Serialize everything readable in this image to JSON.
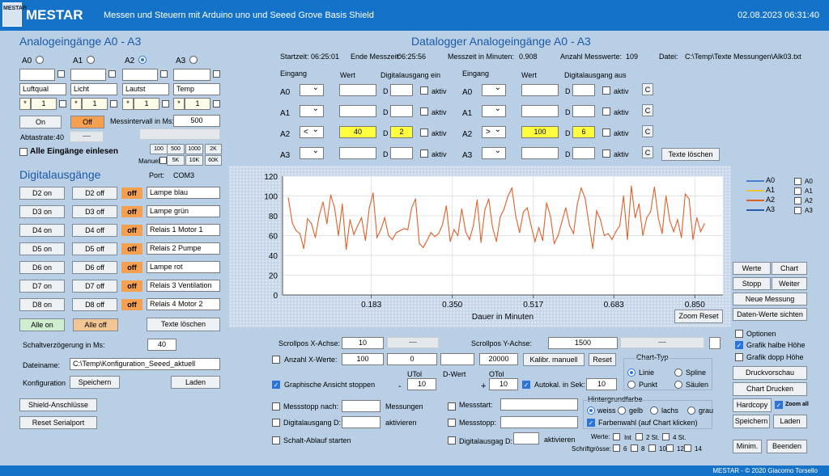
{
  "app": {
    "logo": "MESTAR",
    "title": "MESTAR",
    "subtitle": "Messen und Steuern mit Arduino uno und Seeed Grove Basis Shield",
    "datetime": "02.08.2023 06:31:40",
    "footer": "MESTAR  - © 2020 Giacomo Torsello"
  },
  "analog": {
    "heading": "Analogeingänge A0 - A3",
    "channels": [
      {
        "name": "A0",
        "label": "Luftqual",
        "factor": "1",
        "mult": "*"
      },
      {
        "name": "A1",
        "label": "Licht",
        "factor": "1",
        "mult": "*"
      },
      {
        "name": "A2",
        "label": "Lautst",
        "factor": "1",
        "mult": "*"
      },
      {
        "name": "A3",
        "label": "Temp",
        "factor": "1",
        "mult": "*"
      }
    ],
    "on": "On",
    "off": "Off",
    "interval_label": "Messintervall in Ms:",
    "interval": "500",
    "abtast_label": "Abtastrate:",
    "abtast": "40",
    "slider": "—",
    "read_all": "Alle Eingänge einlesen",
    "presets": [
      "100",
      "500",
      "1000",
      "2K",
      "5K",
      "10K",
      "60K"
    ],
    "manuell": "Manuell"
  },
  "digital": {
    "heading": "Digitalausgänge",
    "port_label": "Port:",
    "port": "COM3",
    "rows": [
      {
        "on": "D2 on",
        "off": "D2 off",
        "state": "off",
        "label": "Lampe blau"
      },
      {
        "on": "D3 on",
        "off": "D3 off",
        "state": "off",
        "label": "Lampe grün"
      },
      {
        "on": "D4 on",
        "off": "D4 off",
        "state": "off",
        "label": "Relais 1 Motor 1"
      },
      {
        "on": "D5 on",
        "off": "D5 off",
        "state": "off",
        "label": "Relais 2 Pumpe"
      },
      {
        "on": "D6 on",
        "off": "D6 off",
        "state": "off",
        "label": "Lampe rot"
      },
      {
        "on": "D7 on",
        "off": "D7 off",
        "state": "off",
        "label": "Relais 3 Ventilation"
      },
      {
        "on": "D8 on",
        "off": "D8 off",
        "state": "off",
        "label": "Relais 4 Motor 2"
      }
    ],
    "all_on": "Alle on",
    "all_off": "Alle off",
    "clear": "Texte löschen",
    "delay_label": "Schaltverzögerung in Ms:",
    "delay": "40",
    "file_label": "Dateiname:",
    "file": "C:\\Temp\\Konfiguration_Seeed_aktuell",
    "cfg_label": "Konfiguration",
    "save": "Speichern",
    "load": "Laden",
    "shield": "Shield-Anschlüsse",
    "reset_port": "Reset Serialport"
  },
  "logger": {
    "heading": "Datalogger Analogeingänge A0 - A3",
    "start_label": "Startzeit:",
    "start": "06:25:01",
    "end_label": "Ende Messzeit:",
    "end": "06:25:56",
    "minutes_label": "Messzeit in Minuten:",
    "minutes": "0.908",
    "count_label": "Anzahl Messwerte:",
    "count": "109",
    "file_label": "Datei:",
    "file": "C:\\Temp\\Texte Messungen\\Alk03.txt",
    "cols": {
      "eingang": "Eingang",
      "wert": "Wert",
      "digital_ein": "Digitalausgang ein",
      "digital_aus": "Digitalausgang aus",
      "d": "D",
      "aktiv": "aktiv",
      "c": "C"
    },
    "left": [
      {
        "ch": "A0",
        "op": "",
        "val": "",
        "d": ""
      },
      {
        "ch": "A1",
        "op": "",
        "val": "",
        "d": ""
      },
      {
        "ch": "A2",
        "op": "<",
        "val": "40",
        "d": "2"
      },
      {
        "ch": "A3",
        "op": "",
        "val": "",
        "d": ""
      }
    ],
    "right": [
      {
        "ch": "A0",
        "op": "",
        "val": "",
        "d": ""
      },
      {
        "ch": "A1",
        "op": "",
        "val": "",
        "d": ""
      },
      {
        "ch": "A2",
        "op": ">",
        "val": "100",
        "d": "6"
      },
      {
        "ch": "A3",
        "op": "",
        "val": "",
        "d": ""
      }
    ],
    "clear": "Texte löschen"
  },
  "chart_data": {
    "type": "line",
    "xlabel": "Dauer in Minuten",
    "ylim": [
      0,
      120
    ],
    "yticks": [
      0,
      20,
      40,
      60,
      80,
      100,
      120
    ],
    "xticks": [
      "0.183",
      "0.350",
      "0.517",
      "0.683",
      "0.850"
    ],
    "xrange": [
      0,
      0.908
    ],
    "legend": [
      "A0",
      "A1",
      "A2",
      "A3"
    ],
    "legend_colors": [
      "#4a7fd0",
      "#e8c43a",
      "#e0602a",
      "#2c5da8"
    ],
    "series": [
      {
        "name": "A2",
        "color": "#e0602a",
        "values": [
          98,
          73,
          65,
          62,
          47,
          77,
          72,
          58,
          80,
          94,
          72,
          101,
          88,
          60,
          92,
          46,
          76,
          61,
          70,
          78,
          55,
          88,
          103,
          58,
          66,
          78,
          60,
          56,
          63,
          65,
          67,
          66,
          88,
          97,
          52,
          48,
          55,
          63,
          59,
          62,
          71,
          90,
          54,
          66,
          60,
          87,
          64,
          56,
          70,
          96,
          53,
          86,
          97,
          68,
          54,
          79,
          87,
          100,
          108,
          80,
          63,
          84,
          88,
          70,
          54,
          68,
          55,
          93,
          80,
          52,
          60,
          74,
          88,
          70,
          62,
          92,
          108,
          98,
          72,
          47,
          85,
          76,
          60,
          62,
          56,
          64,
          70,
          100,
          56,
          110,
          78,
          92,
          60,
          78,
          84,
          109,
          78,
          62,
          100,
          75,
          64,
          76,
          58,
          102,
          97,
          56,
          78,
          64,
          72
        ]
      }
    ]
  },
  "chart_ctrl": {
    "zoom_reset": "Zoom Reset",
    "legend_cbs": [
      "A0",
      "A1",
      "A2",
      "A3"
    ],
    "werte": "Werte",
    "chart": "Chart",
    "stopp": "Stopp",
    "weiter": "Weiter",
    "neue": "Neue Messung",
    "daten": "Daten-Werte sichten",
    "optionen": "Optionen",
    "halbe": "Grafik halbe Höhe",
    "doppel": "Grafik dopp Höhe",
    "druckv": "Druckvorschau",
    "chartdruck": "Chart Drucken",
    "hardcopy": "Hardcopy",
    "zoom_all": "Zoom all",
    "speichern": "Speichern",
    "laden": "Laden",
    "minim": "Minim.",
    "beenden": "Beenden"
  },
  "bottom": {
    "scroll_x_label": "Scrollpos X-Achse:",
    "scroll_x": "10",
    "scroll_y_label": "Scrollpos Y-Achse:",
    "scroll_y": "1500",
    "anzahl_label": "Anzahl X-Werte:",
    "anzahl": "100",
    "v0": "0",
    "v20000": "20000",
    "kalibr": "Kalibr. manuell",
    "reset": "Reset",
    "graph_stop": "Graphische Ansicht stoppen",
    "utol": "UTol",
    "dwert": "D-Wert",
    "otol": "OTol",
    "minus": "-",
    "plus": "+",
    "utol_v": "10",
    "otol_v": "10",
    "autokal": "Autokal. in Sek:",
    "autokal_v": "10",
    "charttyp": "Chart-Typ",
    "linie": "Linie",
    "spline": "Spline",
    "punkt": "Punkt",
    "saeulen": "Säulen",
    "hintergrund": "Hintergrundfarbe",
    "weiss": "weiss",
    "gelb": "gelb",
    "lachs": "lachs",
    "grau": "grau",
    "farbwahl": "Farbenwahl (auf Chart klicken)",
    "werte": "Werte:",
    "int": "Int",
    "st2": "2 St.",
    "st4": "4 St.",
    "schrift": "Schriftgrösse:",
    "fs": [
      "6",
      "8",
      "10",
      "12",
      "14"
    ],
    "messstopp": "Messstopp nach:",
    "messungen": "Messungen",
    "digital_d": "Digitalausgang D:",
    "aktivieren": "aktivieren",
    "schalt": "Schalt-Ablauf starten",
    "messstart": "Messstart:",
    "messstopp2": "Messstopp:",
    "digitalausgag": "Digitalausgag D:"
  }
}
